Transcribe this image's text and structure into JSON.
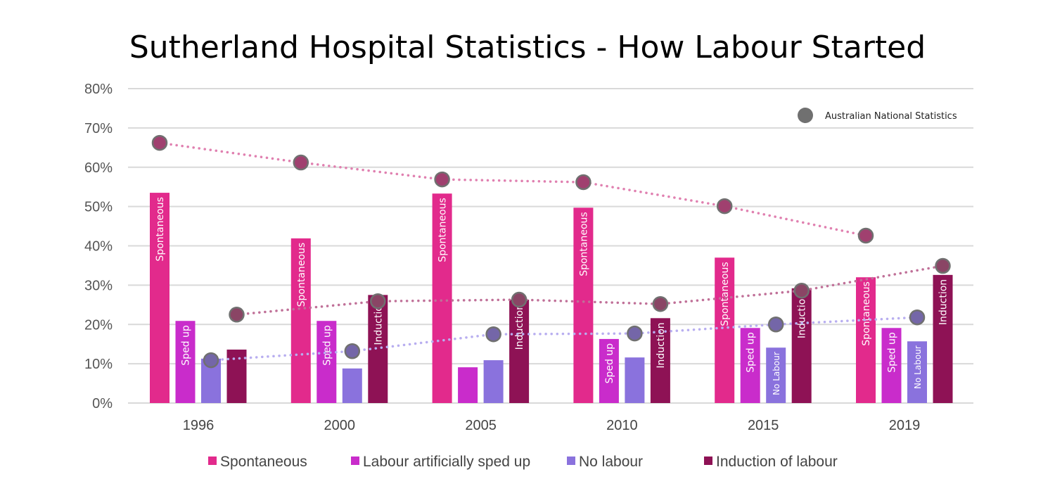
{
  "chart_data": {
    "type": "bar",
    "title": "Sutherland Hospital Statistics - How Labour Started",
    "xlabel": "",
    "ylabel": "",
    "ylim": [
      0,
      80
    ],
    "yticks": [
      "0%",
      "10%",
      "20%",
      "30%",
      "40%",
      "50%",
      "60%",
      "70%",
      "80%"
    ],
    "grid": true,
    "categories": [
      "1996",
      "2000",
      "2005",
      "2010",
      "2015",
      "2019"
    ],
    "series": [
      {
        "name": "Spontaneous",
        "color": "#e22a8c",
        "values": [
          53.5,
          41.9,
          53.3,
          49.7,
          37.0,
          32.0
        ],
        "bar_labels": [
          "Spontaneous",
          "Spontaneous",
          "Spontaneous",
          "Spontaneous",
          "Spontaneous",
          "Spontaneous"
        ]
      },
      {
        "name": "Labour artificially sped up",
        "color": "#c92ccb",
        "values": [
          20.9,
          20.9,
          9.1,
          16.3,
          19.1,
          19.1
        ],
        "bar_labels": [
          "Sped up",
          "Sped up",
          "",
          "Sped up",
          "Sped up",
          "Sped up"
        ]
      },
      {
        "name": "No labour",
        "color": "#8a72dd",
        "values": [
          11.3,
          8.8,
          10.9,
          11.6,
          14.1,
          15.7
        ],
        "bar_labels": [
          "",
          "",
          "",
          "",
          "No Labour",
          "No Labour"
        ]
      },
      {
        "name": "Induction of labour",
        "color": "#8e1255",
        "values": [
          13.6,
          27.5,
          26.3,
          21.6,
          29.2,
          32.6
        ],
        "bar_labels": [
          "",
          "Induction",
          "Induction",
          "Induction",
          "Induction",
          "Induction"
        ]
      }
    ],
    "national": {
      "name": "Australian National Statistics",
      "marker_color": "#707070",
      "series": [
        {
          "of": "Spontaneous",
          "fill": "#a0406f",
          "line": "#e080b0",
          "values": [
            66.2,
            61.2,
            56.9,
            56.2,
            50.1,
            42.6
          ]
        },
        {
          "of": "No labour",
          "fill": "#7466a8",
          "line": "#b8aef0",
          "values": [
            10.9,
            13.2,
            17.5,
            17.7,
            20.0,
            21.8
          ]
        },
        {
          "of": "Induction of labour",
          "fill": "#8a4565",
          "line": "#c07098",
          "values": [
            22.5,
            25.9,
            26.3,
            25.2,
            28.6,
            34.9
          ]
        }
      ]
    },
    "legend_position": "bottom"
  }
}
